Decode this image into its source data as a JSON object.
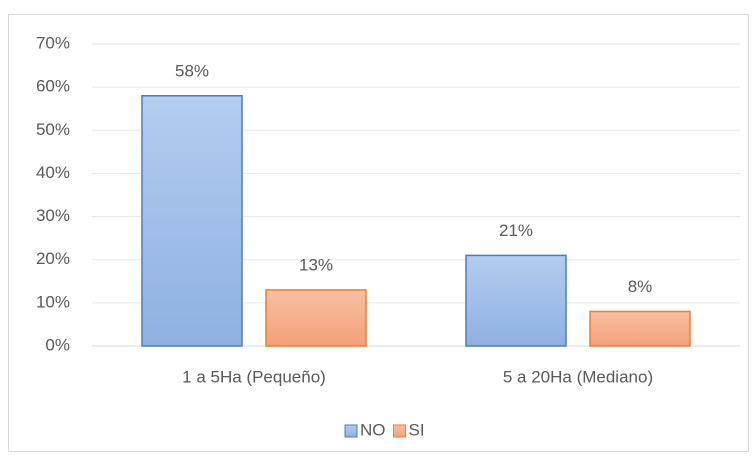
{
  "chart_data": {
    "type": "bar",
    "categories": [
      "1 a 5Ha (Pequeño)",
      "5 a 20Ha (Mediano)"
    ],
    "series": [
      {
        "name": "NO",
        "color": "#9dbce8",
        "values": [
          58,
          21
        ],
        "value_labels": [
          "58%",
          "21%"
        ]
      },
      {
        "name": "SI",
        "color": "#f5ae8a",
        "values": [
          13,
          8
        ],
        "value_labels": [
          "13%",
          "8%"
        ]
      }
    ],
    "ylim": [
      0,
      70
    ],
    "yticks": [
      {
        "value": 0,
        "label": "0%"
      },
      {
        "value": 10,
        "label": "10%"
      },
      {
        "value": 20,
        "label": "20%"
      },
      {
        "value": 30,
        "label": "30%"
      },
      {
        "value": 40,
        "label": "40%"
      },
      {
        "value": 50,
        "label": "50%"
      },
      {
        "value": 60,
        "label": "60%"
      },
      {
        "value": 70,
        "label": "70%"
      }
    ],
    "grid": true,
    "legend": "bottom"
  }
}
